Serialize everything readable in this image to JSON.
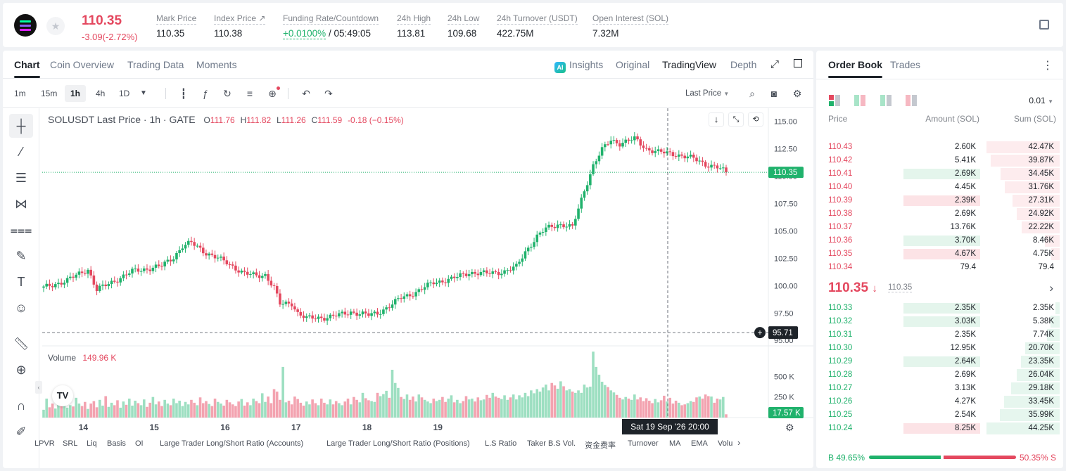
{
  "header": {
    "price": "110.35",
    "change": "-3.09(-2.72%)",
    "stats": [
      {
        "label": "Mark Price",
        "value": "110.35"
      },
      {
        "label": "Index Price ↗",
        "value": "110.38"
      },
      {
        "label": "Funding Rate/Countdown",
        "value_green": "+0.0100%",
        "value": " / 05:49:05"
      },
      {
        "label": "24h High",
        "value": "113.81"
      },
      {
        "label": "24h Low",
        "value": "109.68"
      },
      {
        "label": "24h Turnover (USDT)",
        "value": "422.75M"
      },
      {
        "label": "Open Interest (SOL)",
        "value": "7.32M"
      }
    ]
  },
  "chart_tabs": [
    "Chart",
    "Coin Overview",
    "Trading Data",
    "Moments"
  ],
  "view_tabs": {
    "ai_badge": "AI",
    "insights": "Insights",
    "original": "Original",
    "tradingview": "TradingView",
    "depth": "Depth"
  },
  "timeframes": [
    "1m",
    "15m",
    "1h",
    "4h",
    "1D"
  ],
  "price_type": "Last Price",
  "legend": {
    "symbol": "SOLUSDT Last Price · 1h · GATE",
    "o_label": "O",
    "o": "111.76",
    "h_label": "H",
    "h": "111.82",
    "l_label": "L",
    "l": "111.26",
    "c_label": "C",
    "c": "111.59",
    "chg": "-0.18 (−0.15%)"
  },
  "volume_legend": {
    "label": "Volume",
    "value": "149.96 K"
  },
  "chart_data": {
    "type": "candlestick",
    "y_ticks": [
      "115.00",
      "112.50",
      "110.00",
      "107.50",
      "105.00",
      "102.50",
      "100.00",
      "97.50",
      "95.00"
    ],
    "ylim": [
      94.5,
      116.2
    ],
    "x_ticks": [
      "14",
      "15",
      "16",
      "17",
      "18",
      "19"
    ],
    "volume_ticks": [
      "500 K",
      "250 K"
    ],
    "last_price_label": "110.35",
    "crosshair_price_label": "95.71",
    "crosshair_time_label": "Sat 19 Sep '26  20:00",
    "last_volume_label": "17.57 K",
    "anchors": [
      [
        0,
        99.8
      ],
      [
        8,
        100.5
      ],
      [
        15,
        101.5
      ],
      [
        18,
        99.6
      ],
      [
        30,
        101.3
      ],
      [
        40,
        101.8
      ],
      [
        44,
        102.6
      ],
      [
        47,
        103.6
      ],
      [
        50,
        103.9
      ],
      [
        55,
        103.0
      ],
      [
        62,
        102.1
      ],
      [
        68,
        101.1
      ],
      [
        72,
        100.9
      ],
      [
        75,
        101.0
      ],
      [
        78,
        99.8
      ],
      [
        80,
        98.3
      ],
      [
        84,
        98.4
      ],
      [
        86,
        97.5
      ],
      [
        89,
        97.0
      ],
      [
        95,
        97.1
      ],
      [
        100,
        97.3
      ],
      [
        104,
        97.6
      ],
      [
        110,
        97.3
      ],
      [
        113,
        97.5
      ],
      [
        118,
        98.3
      ],
      [
        121,
        98.9
      ],
      [
        126,
        99.4
      ],
      [
        132,
        100.3
      ],
      [
        138,
        100.6
      ],
      [
        144,
        101.2
      ],
      [
        150,
        101.1
      ],
      [
        156,
        101.3
      ],
      [
        160,
        101.7
      ],
      [
        163,
        103.1
      ],
      [
        167,
        104.5
      ],
      [
        170,
        105.2
      ],
      [
        174,
        105.6
      ],
      [
        177,
        105.5
      ],
      [
        179,
        105.3
      ],
      [
        181,
        107.0
      ],
      [
        183,
        108.7
      ],
      [
        186,
        111.0
      ],
      [
        189,
        112.4
      ],
      [
        192,
        113.3
      ],
      [
        195,
        113.0
      ],
      [
        200,
        113.4
      ],
      [
        204,
        112.5
      ],
      [
        208,
        112.2
      ],
      [
        214,
        112.0
      ],
      [
        220,
        111.6
      ],
      [
        224,
        111.1
      ],
      [
        228,
        110.8
      ],
      [
        231,
        110.35
      ]
    ],
    "volume": [
      95,
      230,
      125,
      170,
      110,
      205,
      140,
      175,
      120,
      150,
      135,
      240,
      170,
      140,
      190,
      105,
      170,
      200,
      125,
      215,
      145,
      260,
      130,
      180,
      150,
      210,
      120,
      195,
      155,
      230,
      145,
      205,
      175,
      150,
      220,
      130,
      180,
      250,
      160,
      195,
      140,
      215,
      170,
      150,
      230,
      175,
      205,
      140,
      190,
      160,
      215,
      180,
      150,
      245,
      175,
      200,
      165,
      140,
      230,
      190,
      170,
      145,
      215,
      185,
      160,
      140,
      195,
      225,
      145,
      185,
      150,
      230,
      200,
      175,
      295,
      190,
      255,
      175,
      345,
      315,
      215,
      615,
      185,
      205,
      160,
      255,
      225,
      180,
      145,
      195,
      160,
      220,
      175,
      150,
      230,
      180,
      160,
      220,
      160,
      200,
      175,
      150,
      195,
      230,
      160,
      250,
      215,
      185,
      300,
      235,
      210,
      200,
      190,
      300,
      260,
      285,
      325,
      240,
      580,
      420,
      360,
      250,
      225,
      280,
      215,
      255,
      195,
      280,
      245,
      215,
      195,
      175,
      230,
      200,
      215,
      250,
      190,
      230,
      270,
      185,
      215,
      175,
      200,
      260,
      220,
      230,
      195,
      245,
      210,
      220,
      275,
      240,
      300,
      255,
      240,
      225,
      270,
      215,
      245,
      280,
      220,
      270,
      245,
      300,
      260,
      330,
      295,
      345,
      315,
      365,
      400,
      330,
      420,
      390,
      350,
      440,
      380,
      330,
      345,
      315,
      300,
      330,
      300,
      400,
      365,
      375,
      800,
      615,
      520,
      435,
      395,
      370,
      330,
      305,
      275,
      240,
      220,
      250,
      230,
      215,
      280,
      220,
      245,
      200,
      235,
      205,
      175,
      225,
      185,
      210,
      265,
      195,
      240,
      170,
      205,
      180,
      150,
      160,
      175,
      200,
      190,
      245,
      255,
      230,
      280,
      260,
      255,
      180,
      230,
      220,
      250,
      40
    ]
  },
  "drawing_tools": [
    "crosshair-tool",
    "trendline-tool",
    "fib-tool",
    "pattern-tool",
    "prediction-tool",
    "brush-tool",
    "text-tool",
    "emoji-tool",
    "ruler-tool",
    "zoom-tool",
    "magnet-tool",
    "pen-tool"
  ],
  "indicators": [
    "LPVR",
    "SRL",
    "Liq",
    "Basis",
    "OI",
    "Large Trader Long/Short Ratio (Accounts)",
    "Large Trader Long/Short Ratio (Positions)",
    "L.S Ratio",
    "Taker B.S Vol.",
    "资金费率",
    "Turnover",
    "MA",
    "EMA",
    "Volu"
  ],
  "orderbook": {
    "tabs": [
      "Order Book",
      "Trades"
    ],
    "precision": "0.01",
    "headers": {
      "price": "Price",
      "amount": "Amount (SOL)",
      "sum": "Sum (SOL)"
    },
    "asks": [
      {
        "price": "110.43",
        "amount": "2.60K",
        "sum": "42.47K",
        "depth": 1.0,
        "hl": 0
      },
      {
        "price": "110.42",
        "amount": "5.41K",
        "sum": "39.87K",
        "depth": 0.939,
        "hl": 0
      },
      {
        "price": "110.41",
        "amount": "2.69K",
        "sum": "34.45K",
        "depth": 0.811,
        "hl": 1
      },
      {
        "price": "110.40",
        "amount": "4.45K",
        "sum": "31.76K",
        "depth": 0.748,
        "hl": 0
      },
      {
        "price": "110.39",
        "amount": "2.39K",
        "sum": "27.31K",
        "depth": 0.643,
        "hl": 2
      },
      {
        "price": "110.38",
        "amount": "2.69K",
        "sum": "24.92K",
        "depth": 0.587,
        "hl": 0
      },
      {
        "price": "110.37",
        "amount": "13.76K",
        "sum": "22.22K",
        "depth": 0.523,
        "hl": 0
      },
      {
        "price": "110.36",
        "amount": "3.70K",
        "sum": "8.46K",
        "depth": 0.199,
        "hl": 1
      },
      {
        "price": "110.35",
        "amount": "4.67K",
        "sum": "4.75K",
        "depth": 0.112,
        "hl": 2
      },
      {
        "price": "110.34",
        "amount": "79.4",
        "sum": "79.4",
        "depth": 0.002,
        "hl": 0
      }
    ],
    "mid": {
      "price": "110.35",
      "arrow": "↓",
      "mark": "110.35"
    },
    "bids": [
      {
        "price": "110.33",
        "amount": "2.35K",
        "sum": "2.35K",
        "depth": 0.053,
        "hl": 1
      },
      {
        "price": "110.32",
        "amount": "3.03K",
        "sum": "5.38K",
        "depth": 0.122,
        "hl": 1
      },
      {
        "price": "110.31",
        "amount": "2.35K",
        "sum": "7.74K",
        "depth": 0.175,
        "hl": 0
      },
      {
        "price": "110.30",
        "amount": "12.95K",
        "sum": "20.70K",
        "depth": 0.468,
        "hl": 0
      },
      {
        "price": "110.29",
        "amount": "2.64K",
        "sum": "23.35K",
        "depth": 0.528,
        "hl": 1
      },
      {
        "price": "110.28",
        "amount": "2.69K",
        "sum": "26.04K",
        "depth": 0.589,
        "hl": 0
      },
      {
        "price": "110.27",
        "amount": "3.13K",
        "sum": "29.18K",
        "depth": 0.66,
        "hl": 0
      },
      {
        "price": "110.26",
        "amount": "4.27K",
        "sum": "33.45K",
        "depth": 0.756,
        "hl": 0
      },
      {
        "price": "110.25",
        "amount": "2.54K",
        "sum": "35.99K",
        "depth": 0.814,
        "hl": 0
      },
      {
        "price": "110.24",
        "amount": "8.25K",
        "sum": "44.25K",
        "depth": 1.0,
        "hl": 2
      }
    ],
    "buy_ratio_label": "B 49.65%",
    "sell_ratio_label": "50.35% S",
    "buy_ratio": 0.4965
  },
  "colors": {
    "up": "#20b26c",
    "down": "#e4485f",
    "up_vol": "#9ddfc1",
    "down_vol": "#f3a3b0",
    "text": "#1e2329",
    "muted": "#81858c"
  }
}
